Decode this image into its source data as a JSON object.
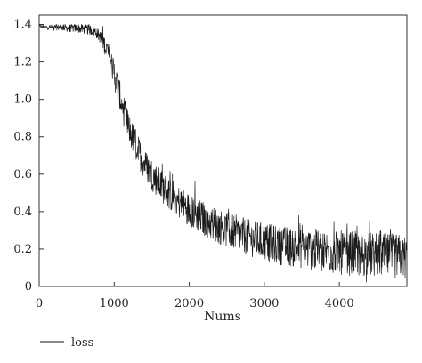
{
  "chart_data": {
    "type": "line",
    "title": "",
    "xlabel": "Nums",
    "ylabel": "",
    "xlim": [
      0,
      4900
    ],
    "ylim": [
      0,
      1.45
    ],
    "xticks": [
      0,
      1000,
      2000,
      3000,
      4000
    ],
    "xtick_labels": [
      "0",
      "1000",
      "2000",
      "3000",
      "4000"
    ],
    "yticks": [
      0,
      0.2,
      0.4,
      0.6,
      0.8,
      1.0,
      1.2,
      1.4
    ],
    "ytick_labels": [
      "0",
      "0.2",
      "0.4",
      "0.6",
      "0.8",
      "1.0",
      "1.2",
      "1.4"
    ],
    "grid": false,
    "legend_position": "bottom-left",
    "series": [
      {
        "name": "loss",
        "color": "#1a1a1a",
        "x": [
          0,
          100,
          200,
          300,
          400,
          500,
          600,
          700,
          750,
          800,
          850,
          900,
          950,
          1000,
          1050,
          1100,
          1150,
          1200,
          1250,
          1300,
          1400,
          1500,
          1600,
          1700,
          1800,
          1900,
          2000,
          2200,
          2400,
          2600,
          2800,
          3000,
          3200,
          3400,
          3600,
          3800,
          4000,
          4200,
          4400,
          4600,
          4800,
          4900
        ],
        "y": [
          1.39,
          1.385,
          1.385,
          1.385,
          1.38,
          1.38,
          1.375,
          1.37,
          1.36,
          1.34,
          1.31,
          1.27,
          1.21,
          1.14,
          1.06,
          0.98,
          0.9,
          0.84,
          0.79,
          0.74,
          0.66,
          0.6,
          0.55,
          0.51,
          0.47,
          0.44,
          0.41,
          0.36,
          0.32,
          0.29,
          0.26,
          0.24,
          0.22,
          0.21,
          0.2,
          0.19,
          0.18,
          0.175,
          0.17,
          0.165,
          0.16,
          0.155
        ]
      }
    ],
    "noise_amplitude": [
      {
        "x": 0,
        "amp": 0.01
      },
      {
        "x": 800,
        "amp": 0.03
      },
      {
        "x": 1000,
        "amp": 0.08
      },
      {
        "x": 2000,
        "amp": 0.09
      },
      {
        "x": 3000,
        "amp": 0.1
      },
      {
        "x": 4000,
        "amp": 0.12
      },
      {
        "x": 4900,
        "amp": 0.12
      }
    ]
  }
}
